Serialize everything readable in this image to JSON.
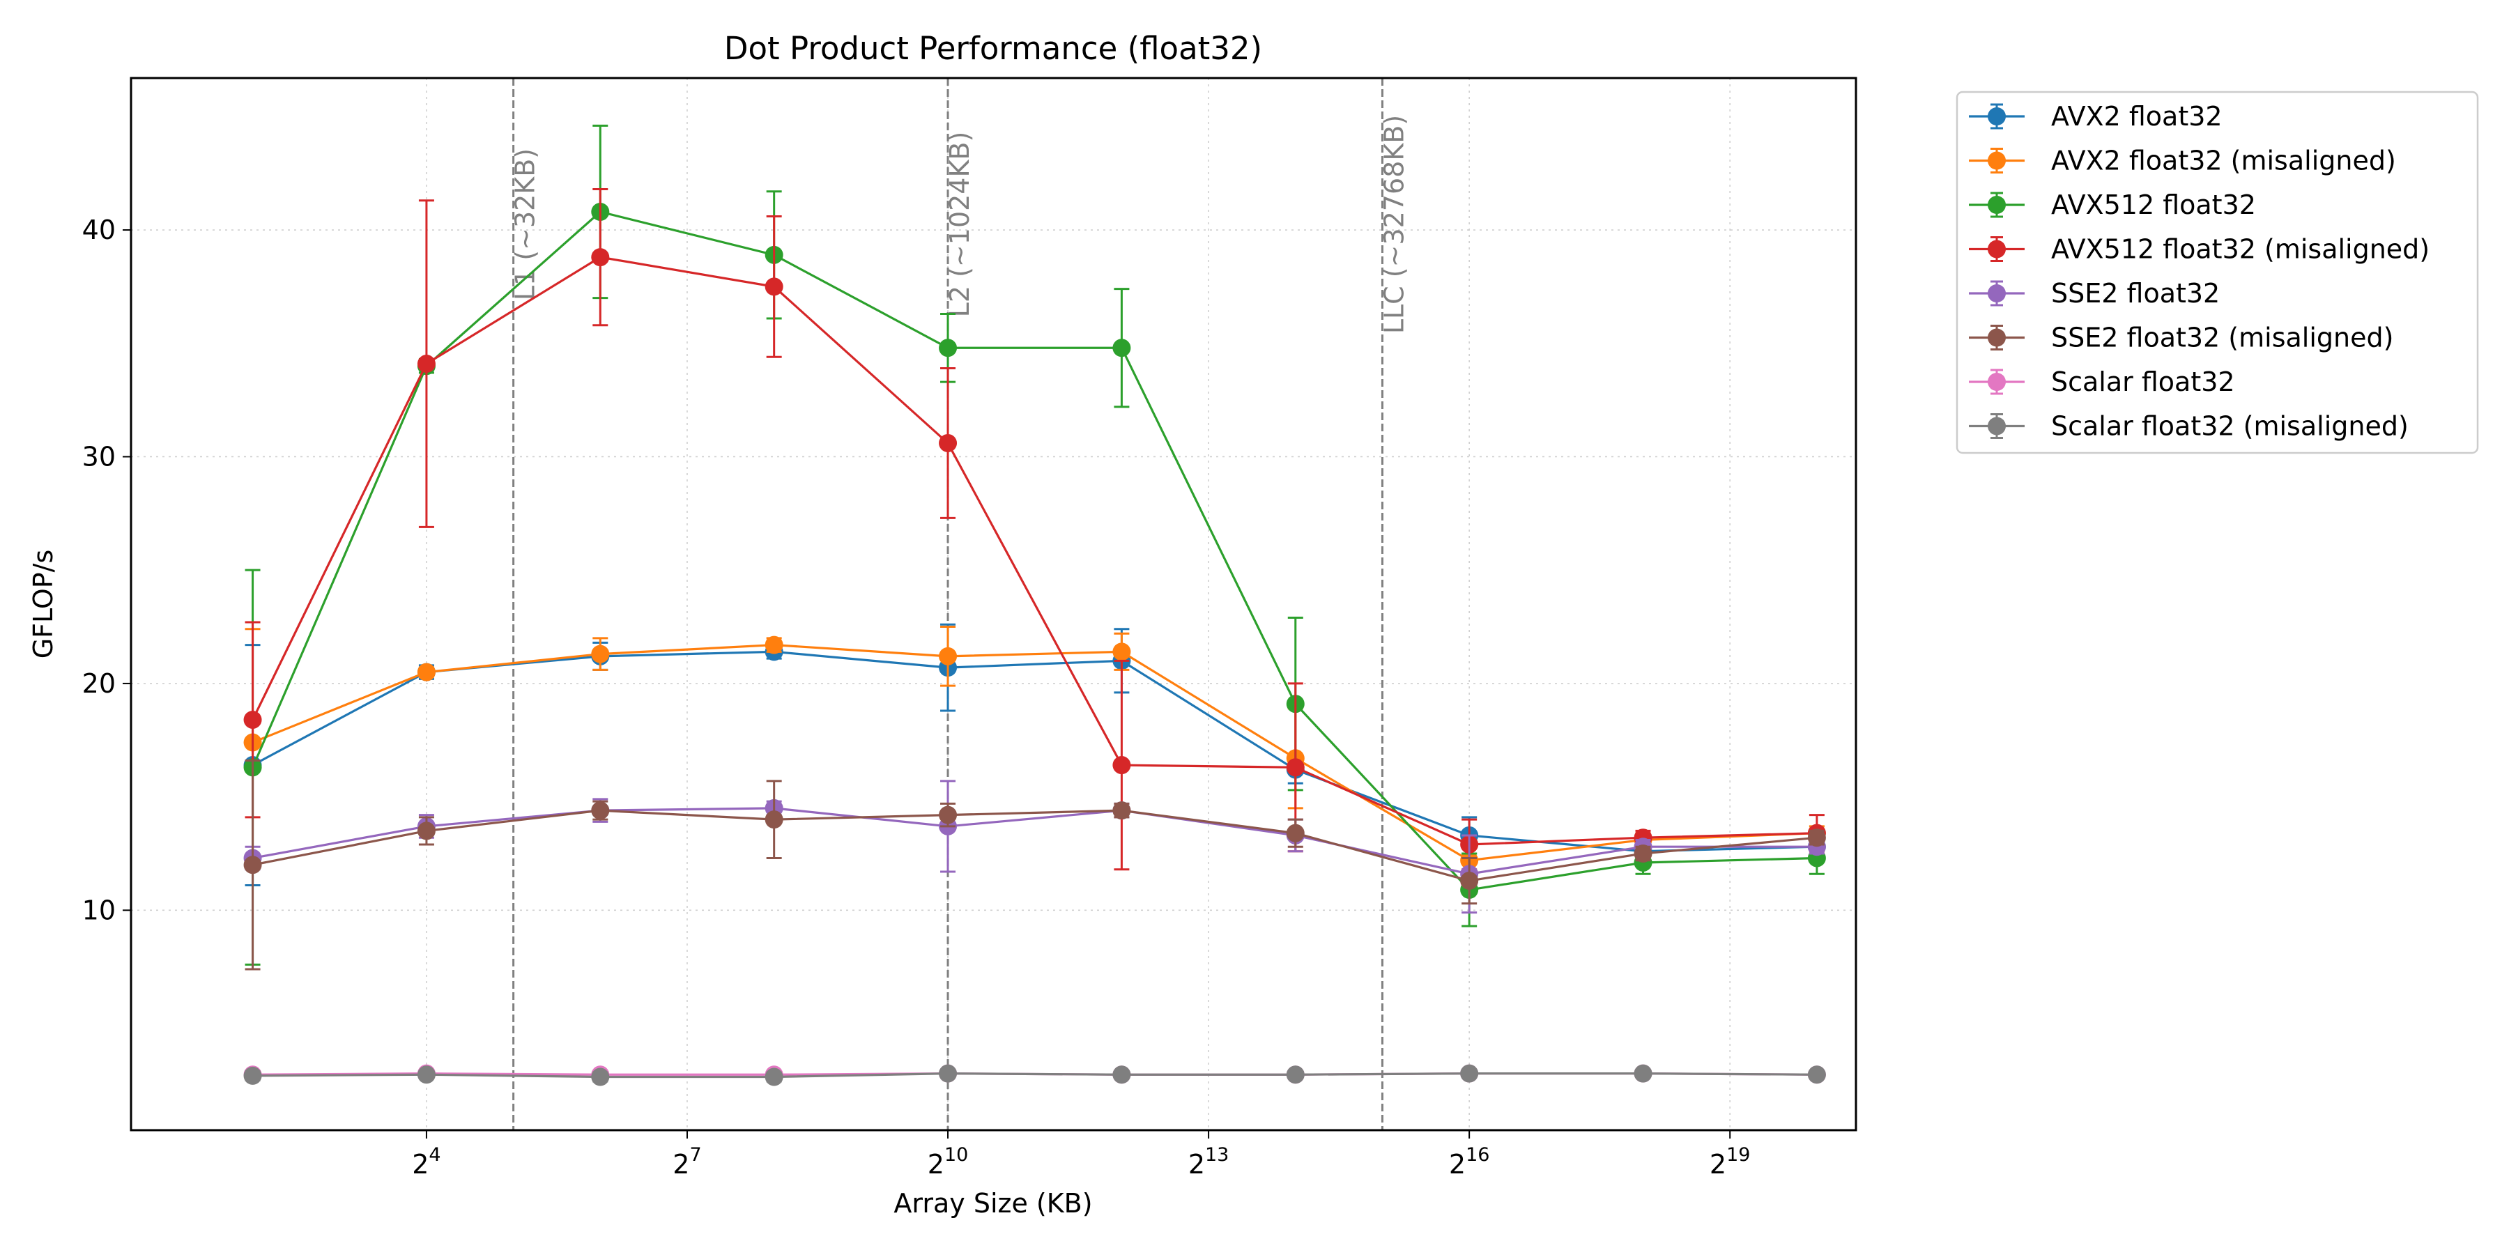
{
  "chart_data": {
    "type": "line",
    "title": "Dot Product Performance (float32)",
    "xlabel": "Array Size (KB)",
    "ylabel": "GFLOP/s",
    "x_scale": "log2",
    "x_tick_labels": [
      {
        "base": "2",
        "exp": "4",
        "value": 16
      },
      {
        "base": "2",
        "exp": "7",
        "value": 128
      },
      {
        "base": "2",
        "exp": "10",
        "value": 1024
      },
      {
        "base": "2",
        "exp": "13",
        "value": 8192
      },
      {
        "base": "2",
        "exp": "16",
        "value": 65536
      },
      {
        "base": "2",
        "exp": "19",
        "value": 524288
      }
    ],
    "y_ticks": [
      10,
      20,
      30,
      40
    ],
    "y_tick_labels": [
      "10",
      "20",
      "30",
      "40"
    ],
    "ylim": [
      0.3,
      46.7
    ],
    "xlim_log2": [
      0.6,
      20.45
    ],
    "grid": true,
    "legend_position": "outside-right-top",
    "x": [
      4,
      16,
      64,
      256,
      1024,
      4096,
      16384,
      65536,
      262144,
      1048576
    ],
    "cache_lines": [
      {
        "label": "L1 (~32KB)",
        "x": 32
      },
      {
        "label": "L2 (~1024KB)",
        "x": 1024
      },
      {
        "label": "LLC (~32768KB)",
        "x": 32768
      }
    ],
    "series": [
      {
        "name": "AVX2 float32",
        "color": "#1f77b4",
        "values": [
          16.4,
          20.5,
          21.2,
          21.4,
          20.7,
          21.0,
          16.2,
          13.3,
          12.6,
          12.8
        ],
        "errors": [
          5.3,
          0.3,
          0.6,
          0.3,
          1.9,
          1.4,
          0.6,
          0.8,
          0.3,
          0.3
        ]
      },
      {
        "name": "AVX2 float32 (misaligned)",
        "color": "#ff7f0e",
        "values": [
          17.4,
          20.5,
          21.3,
          21.7,
          21.2,
          21.4,
          16.7,
          12.2,
          13.1,
          13.4
        ],
        "errors": [
          5.0,
          0.2,
          0.7,
          0.3,
          1.3,
          0.8,
          2.2,
          0.6,
          0.3,
          0.3
        ]
      },
      {
        "name": "AVX512 float32",
        "color": "#2ca02c",
        "values": [
          16.3,
          34.0,
          40.8,
          38.9,
          34.8,
          34.8,
          19.1,
          10.9,
          12.1,
          12.3
        ],
        "errors": [
          8.7,
          0.3,
          3.8,
          2.8,
          1.5,
          2.6,
          3.8,
          1.6,
          0.5,
          0.7
        ]
      },
      {
        "name": "AVX512 float32 (misaligned)",
        "color": "#d62728",
        "values": [
          18.4,
          34.1,
          38.8,
          37.5,
          30.6,
          16.4,
          16.3,
          12.9,
          13.2,
          13.4
        ],
        "errors": [
          4.3,
          7.2,
          3.0,
          3.1,
          3.3,
          4.6,
          3.7,
          1.1,
          0.3,
          0.8
        ]
      },
      {
        "name": "SSE2 float32",
        "color": "#9467bd",
        "values": [
          12.3,
          13.7,
          14.4,
          14.5,
          13.7,
          14.4,
          13.3,
          11.6,
          12.8,
          12.8
        ],
        "errors": [
          0.5,
          0.5,
          0.5,
          0.3,
          2.0,
          0.3,
          0.7,
          1.7,
          0.3,
          0.3
        ]
      },
      {
        "name": "SSE2 float32 (misaligned)",
        "color": "#8c564b",
        "values": [
          12.0,
          13.5,
          14.4,
          14.0,
          14.2,
          14.4,
          13.4,
          11.3,
          12.5,
          13.2
        ],
        "errors": [
          4.6,
          0.6,
          0.4,
          1.7,
          0.5,
          0.3,
          0.6,
          1.0,
          0.3,
          0.3
        ]
      },
      {
        "name": "Scalar float32",
        "color": "#e377c2",
        "values": [
          2.75,
          2.8,
          2.75,
          2.75,
          2.8,
          2.75,
          2.75,
          2.8,
          2.8,
          2.75
        ],
        "errors": [
          0.1,
          0.1,
          0.1,
          0.1,
          0.1,
          0.1,
          0.1,
          0.1,
          0.1,
          0.1
        ]
      },
      {
        "name": "Scalar float32 (misaligned)",
        "color": "#7f7f7f",
        "values": [
          2.7,
          2.75,
          2.65,
          2.65,
          2.8,
          2.75,
          2.75,
          2.8,
          2.8,
          2.75
        ],
        "errors": [
          0.2,
          0.1,
          0.2,
          0.2,
          0.1,
          0.1,
          0.1,
          0.1,
          0.1,
          0.1
        ]
      }
    ]
  }
}
